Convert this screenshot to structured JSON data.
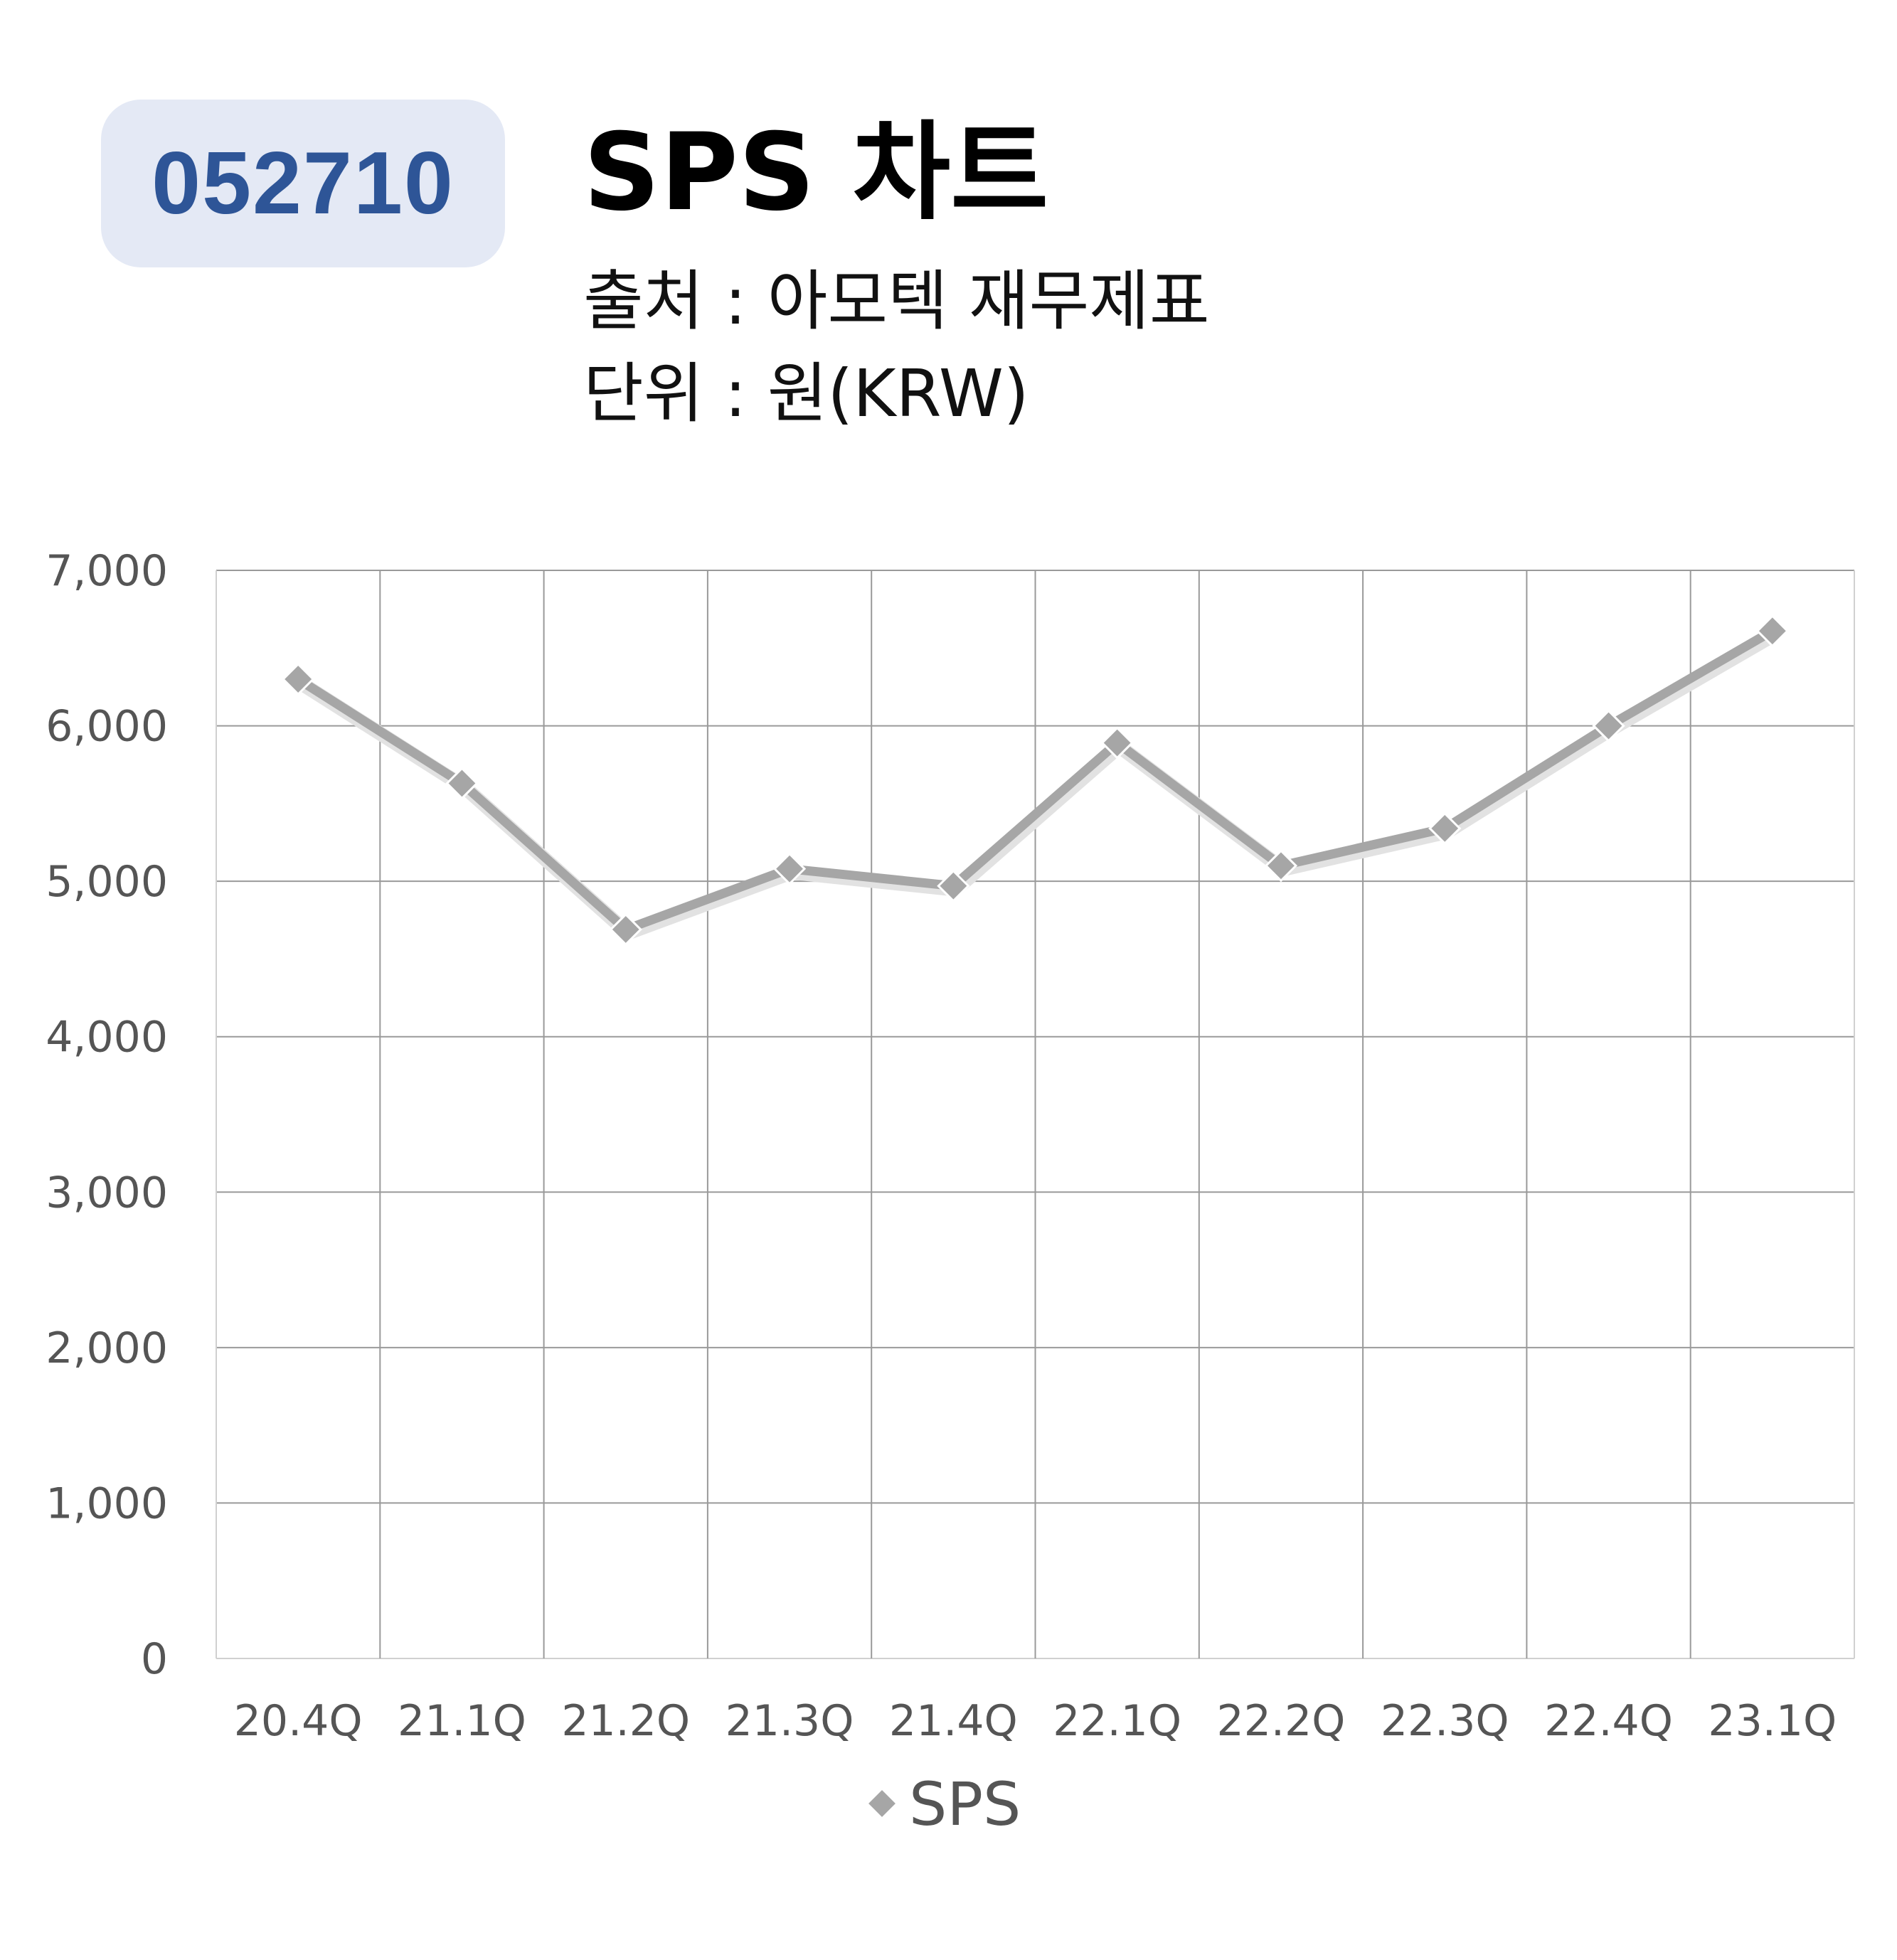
{
  "header": {
    "code": "052710",
    "title": "SPS 차트",
    "source": "출처 : 아모텍 재무제표",
    "unit": "단위 : 원(KRW)"
  },
  "chart_data": {
    "type": "line",
    "categories": [
      "20.4Q",
      "21.1Q",
      "21.2Q",
      "21.3Q",
      "21.4Q",
      "22.1Q",
      "22.2Q",
      "22.3Q",
      "22.4Q",
      "23.1Q"
    ],
    "series": [
      {
        "name": "SPS",
        "values": [
          6300,
          5630,
          4690,
          5080,
          4970,
          5890,
          5100,
          5340,
          6000,
          6610
        ],
        "color": "#a6a6a6",
        "marker": "diamond"
      }
    ],
    "yticks": [
      "0",
      "1,000",
      "2,000",
      "3,000",
      "4,000",
      "5,000",
      "6,000",
      "7,000"
    ],
    "ylim": [
      0,
      7000
    ],
    "grid": true,
    "legend": "bottom"
  }
}
